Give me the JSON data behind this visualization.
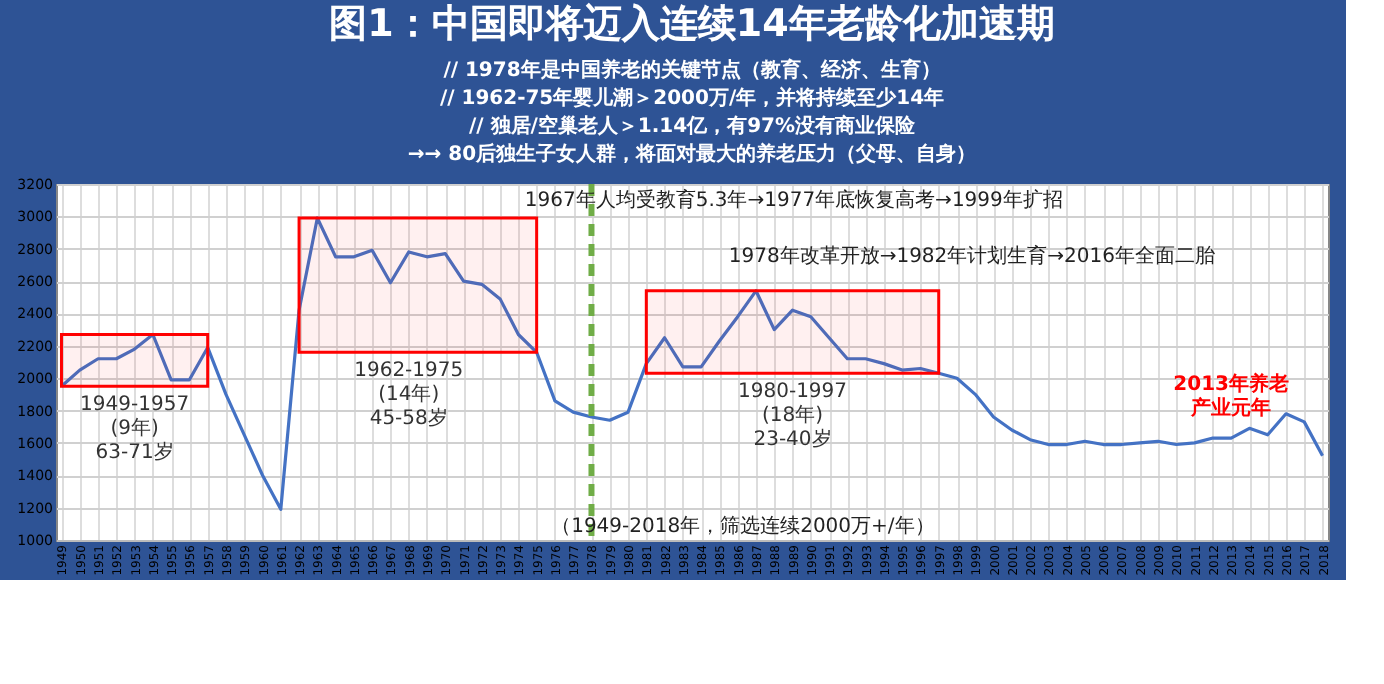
{
  "chart_data": {
    "type": "line",
    "title": "图1：中国即将迈入连续14年老龄化加速期",
    "subtitle": [
      "// 1978年是中国养老的关键节点（教育、经济、生育）",
      "// 1962-75年婴儿潮＞2000万/年，并将持续至少14年",
      "// 独居/空巢老人＞1.14亿，有97%没有商业保险",
      "→→ 80后独生子女人群，将面对最大的养老压力（父母、自身）"
    ],
    "categories": [
      "1949",
      "1950",
      "1951",
      "1952",
      "1953",
      "1954",
      "1955",
      "1956",
      "1957",
      "1958",
      "1959",
      "1960",
      "1961",
      "1962",
      "1963",
      "1964",
      "1965",
      "1966",
      "1967",
      "1968",
      "1969",
      "1970",
      "1971",
      "1972",
      "1973",
      "1974",
      "1975",
      "1976",
      "1977",
      "1978",
      "1979",
      "1980",
      "1981",
      "1982",
      "1983",
      "1984",
      "1985",
      "1986",
      "1987",
      "1988",
      "1989",
      "1990",
      "1991",
      "1992",
      "1993",
      "1994",
      "1995",
      "1996",
      "1997",
      "1998",
      "1999",
      "2000",
      "2001",
      "2002",
      "2003",
      "2004",
      "2005",
      "2006",
      "2007",
      "2008",
      "2009",
      "2010",
      "2011",
      "2012",
      "2013",
      "2014",
      "2015",
      "2016",
      "2017",
      "2018"
    ],
    "series": [
      {
        "color": "#4472c4",
        "values": [
          1950,
          2050,
          2120,
          2120,
          2180,
          2270,
          1990,
          1990,
          2190,
          1900,
          1650,
          1400,
          1190,
          2420,
          2990,
          2750,
          2750,
          2790,
          2590,
          2780,
          2750,
          2770,
          2600,
          2580,
          2490,
          2270,
          2160,
          1860,
          1790,
          1760,
          1740,
          1790,
          2090,
          2250,
          2070,
          2070,
          2230,
          2380,
          2540,
          2300,
          2420,
          2380,
          2250,
          2120,
          2120,
          2090,
          2050,
          2060,
          2030,
          2000,
          1900,
          1760,
          1680,
          1620,
          1590,
          1590,
          1610,
          1590,
          1590,
          1600,
          1610,
          1590,
          1600,
          1630,
          1630,
          1690,
          1650,
          1780,
          1730,
          1520
        ]
      }
    ],
    "ylim": [
      1000,
      3200
    ],
    "yticks": [
      1000,
      1200,
      1400,
      1600,
      1800,
      2000,
      2200,
      2400,
      2600,
      2800,
      3000,
      3200
    ],
    "grid": true,
    "marker": "none",
    "line_style": "solid",
    "bands": [
      {
        "axis": "x",
        "from": "1949",
        "to": "1957",
        "label": "1949-1957\n(9年)\n63-71岁",
        "color": "#ff0000"
      },
      {
        "axis": "x",
        "from": "1962",
        "to": "1975",
        "label": "1962-1975\n(14年)\n45-58岁",
        "color": "#ff0000"
      },
      {
        "axis": "x",
        "from": "1981",
        "to": "1997",
        "label": "1980-1997\n(18年)\n23-40岁",
        "color": "#ff0000"
      }
    ],
    "ref_lines": [
      {
        "axis": "x",
        "value": "1978",
        "label": null,
        "color": "#70ad47",
        "line_style": "dashed"
      }
    ],
    "annotations": [
      "1967年人均受教育5.3年→1977年底恢复高考→1999年扩招",
      "1978年改革开放→1982年计划生育→2016年全面二胎",
      {
        "text": "2013年养老产业元年",
        "x": "2013",
        "y": 1630
      },
      "（1949-2018年，筛选连续2000万+/年）"
    ]
  }
}
